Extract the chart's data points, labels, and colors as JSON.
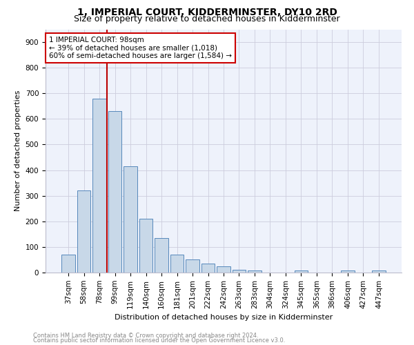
{
  "title": "1, IMPERIAL COURT, KIDDERMINSTER, DY10 2RD",
  "subtitle": "Size of property relative to detached houses in Kidderminster",
  "xlabel": "Distribution of detached houses by size in Kidderminster",
  "ylabel": "Number of detached properties",
  "footnote1": "Contains HM Land Registry data © Crown copyright and database right 2024.",
  "footnote2": "Contains public sector information licensed under the Open Government Licence v3.0.",
  "bar_labels": [
    "37sqm",
    "58sqm",
    "78sqm",
    "99sqm",
    "119sqm",
    "140sqm",
    "160sqm",
    "181sqm",
    "201sqm",
    "222sqm",
    "242sqm",
    "263sqm",
    "283sqm",
    "304sqm",
    "324sqm",
    "345sqm",
    "365sqm",
    "386sqm",
    "406sqm",
    "427sqm",
    "447sqm"
  ],
  "bar_values": [
    70,
    320,
    680,
    630,
    415,
    210,
    135,
    70,
    50,
    35,
    25,
    12,
    8,
    0,
    0,
    8,
    0,
    0,
    8,
    0,
    8
  ],
  "bar_color": "#c8d8e8",
  "bar_edge_color": "#5588bb",
  "annotation_line1": "1 IMPERIAL COURT: 98sqm",
  "annotation_line2": "← 39% of detached houses are smaller (1,018)",
  "annotation_line3": "60% of semi-detached houses are larger (1,584) →",
  "vline_x_index": 3,
  "vline_color": "#bb0000",
  "annotation_box_color": "#ffffff",
  "annotation_box_edge_color": "#cc0000",
  "ylim": [
    0,
    950
  ],
  "yticks": [
    0,
    100,
    200,
    300,
    400,
    500,
    600,
    700,
    800,
    900
  ],
  "grid_color": "#ccccdd",
  "background_color": "#eef2fb",
  "title_fontsize": 10,
  "subtitle_fontsize": 9,
  "xlabel_fontsize": 8,
  "ylabel_fontsize": 8,
  "tick_fontsize": 7.5,
  "annotation_fontsize": 7.5
}
